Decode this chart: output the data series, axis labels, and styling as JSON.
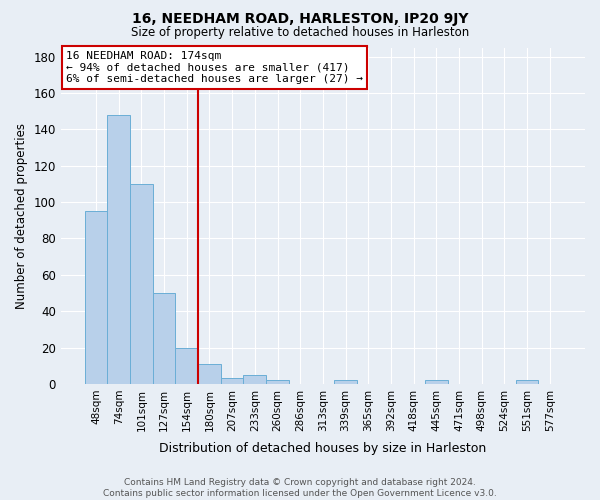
{
  "title": "16, NEEDHAM ROAD, HARLESTON, IP20 9JY",
  "subtitle": "Size of property relative to detached houses in Harleston",
  "xlabel": "Distribution of detached houses by size in Harleston",
  "ylabel": "Number of detached properties",
  "footer_line1": "Contains HM Land Registry data © Crown copyright and database right 2024.",
  "footer_line2": "Contains public sector information licensed under the Open Government Licence v3.0.",
  "categories": [
    "48sqm",
    "74sqm",
    "101sqm",
    "127sqm",
    "154sqm",
    "180sqm",
    "207sqm",
    "233sqm",
    "260sqm",
    "286sqm",
    "313sqm",
    "339sqm",
    "365sqm",
    "392sqm",
    "418sqm",
    "445sqm",
    "471sqm",
    "498sqm",
    "524sqm",
    "551sqm",
    "577sqm"
  ],
  "values": [
    95,
    148,
    110,
    50,
    20,
    11,
    3,
    5,
    2,
    0,
    0,
    2,
    0,
    0,
    0,
    2,
    0,
    0,
    0,
    2,
    0
  ],
  "bar_color": "#b8d0ea",
  "bar_edge_color": "#6aaed6",
  "vline_pos": 4.5,
  "vline_color": "#cc0000",
  "annotation_text": "16 NEEDHAM ROAD: 174sqm\n← 94% of detached houses are smaller (417)\n6% of semi-detached houses are larger (27) →",
  "annotation_box_facecolor": "#ffffff",
  "annotation_box_edgecolor": "#cc0000",
  "ylim": [
    0,
    185
  ],
  "yticks": [
    0,
    20,
    40,
    60,
    80,
    100,
    120,
    140,
    160,
    180
  ],
  "background_color": "#e8eef5",
  "plot_background_color": "#e8eef5",
  "grid_color": "#ffffff"
}
